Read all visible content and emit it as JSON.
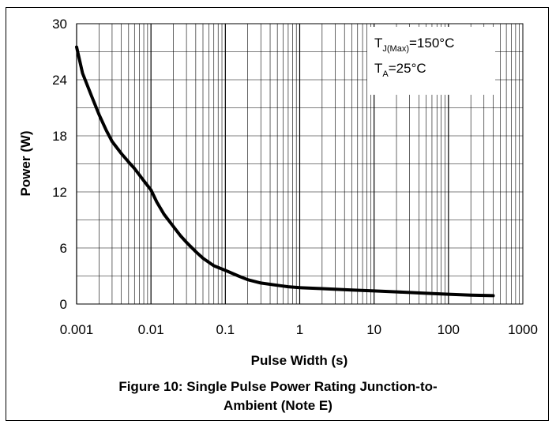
{
  "chart_data": {
    "type": "line",
    "title": "",
    "xlabel": "Pulse Width (s)",
    "ylabel": "Power (W)",
    "xscale": "log",
    "xlim": [
      0.001,
      1000
    ],
    "ylim": [
      0,
      30
    ],
    "grid": true,
    "x_tick_labels": [
      "0.001",
      "0.01",
      "0.1",
      "1",
      "10",
      "100",
      "1000"
    ],
    "y_tick_labels": [
      "0",
      "6",
      "12",
      "18",
      "24",
      "30"
    ],
    "series": [
      {
        "x": [
          0.001,
          0.0012,
          0.0016,
          0.002,
          0.0025,
          0.003,
          0.004,
          0.005,
          0.006,
          0.007,
          0.008,
          0.01,
          0.012,
          0.015,
          0.02,
          0.025,
          0.03,
          0.04,
          0.05,
          0.07,
          0.1,
          0.15,
          0.2,
          0.3,
          0.5,
          0.7,
          1,
          2,
          5,
          10,
          20,
          50,
          100,
          200,
          400
        ],
        "y": [
          27.5,
          24.7,
          22.2,
          20.3,
          18.6,
          17.4,
          16.1,
          15.2,
          14.5,
          13.8,
          13.2,
          12.2,
          10.9,
          9.6,
          8.3,
          7.3,
          6.6,
          5.6,
          4.9,
          4.1,
          3.6,
          3.0,
          2.6,
          2.25,
          2.0,
          1.85,
          1.75,
          1.65,
          1.5,
          1.4,
          1.3,
          1.15,
          1.05,
          0.95,
          0.9
        ]
      }
    ],
    "annotations": [
      {
        "main": "T",
        "sub": "J(Max)",
        "rest": "=150°C"
      },
      {
        "main": "T",
        "sub": "A",
        "rest": "=25°C"
      }
    ],
    "caption_lines": [
      "Figure 10: Single Pulse Power Rating Junction-to-",
      "Ambient (Note E)"
    ]
  }
}
